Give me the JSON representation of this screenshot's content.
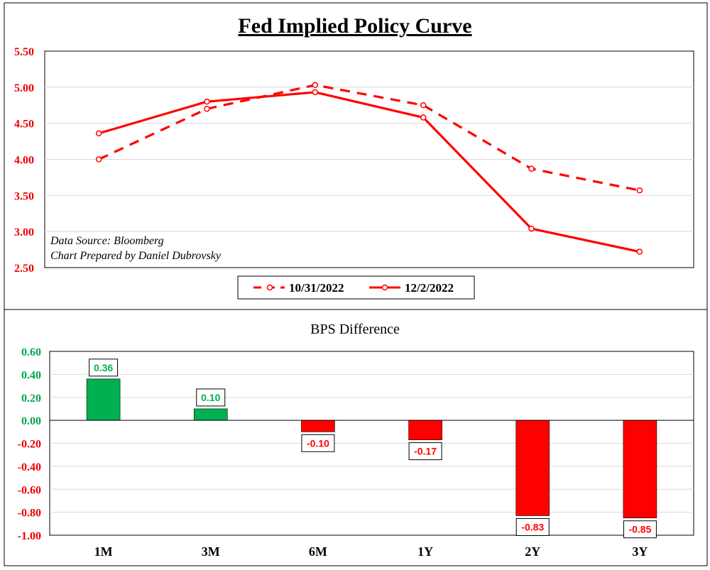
{
  "chart_data": [
    {
      "type": "line",
      "title": "Fed Implied Policy Curve",
      "ylim": [
        2.5,
        5.5
      ],
      "yticks": [
        "5.50",
        "5.00",
        "4.50",
        "4.00",
        "3.50",
        "3.00",
        "2.50"
      ],
      "ytick_values": [
        5.5,
        5.0,
        4.5,
        4.0,
        3.5,
        3.0,
        2.5
      ],
      "categories": [
        "1M",
        "3M",
        "6M",
        "1Y",
        "2Y",
        "3Y"
      ],
      "series": [
        {
          "name": "10/31/2022",
          "style": "dashed",
          "color": "#ff0000",
          "values": [
            4.0,
            4.7,
            5.03,
            4.75,
            3.87,
            3.57
          ]
        },
        {
          "name": "12/2/2022",
          "style": "solid",
          "color": "#ff0000",
          "values": [
            4.36,
            4.8,
            4.93,
            4.58,
            3.04,
            2.72
          ]
        }
      ],
      "annotations": [
        "Data Source: Bloomberg",
        "Chart Prepared by Daniel Dubrovsky"
      ],
      "legend": "bottom-center",
      "grid": true
    },
    {
      "type": "bar",
      "title": "BPS Difference",
      "categories": [
        "1M",
        "3M",
        "6M",
        "1Y",
        "2Y",
        "3Y"
      ],
      "values": [
        0.36,
        0.1,
        -0.1,
        -0.17,
        -0.83,
        -0.85
      ],
      "data_labels": [
        "0.36",
        "0.10",
        "-0.10",
        "-0.17",
        "-0.83",
        "-0.85"
      ],
      "ylim": [
        -1.0,
        0.6
      ],
      "yticks": [
        "0.60",
        "0.40",
        "0.20",
        "0.00",
        "-0.20",
        "-0.40",
        "-0.60",
        "-0.80",
        "-1.00"
      ],
      "ytick_values": [
        0.6,
        0.4,
        0.2,
        0.0,
        -0.2,
        -0.4,
        -0.6,
        -0.8,
        -1.0
      ],
      "positive_color": "#00b050",
      "negative_color": "#ff0000",
      "grid": true
    }
  ]
}
